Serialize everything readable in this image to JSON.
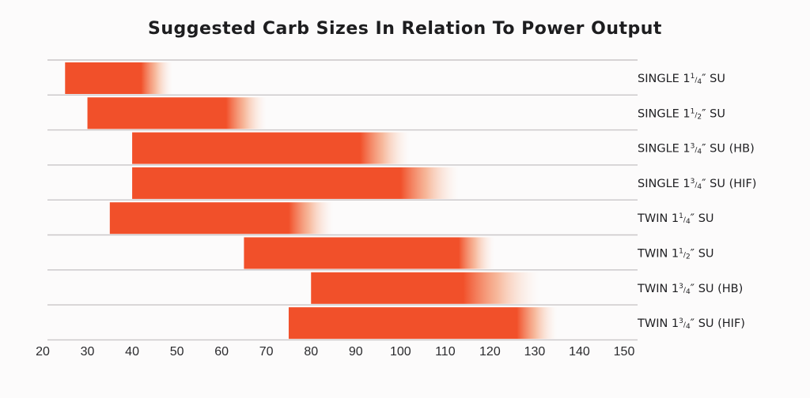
{
  "chart_data": {
    "type": "bar",
    "orientation": "horizontal-range",
    "title": "Suggested Carb Sizes In Relation To Power Output",
    "xlabel": "",
    "ylabel": "",
    "xlim": [
      20,
      150
    ],
    "x_ticks": [
      "20",
      "30",
      "40",
      "50",
      "60",
      "70",
      "80",
      "90",
      "100",
      "110",
      "120",
      "130",
      "140",
      "150"
    ],
    "bar_color": "#f1502a",
    "grid": true,
    "categories": [
      {
        "label": "SINGLE 1¼″ SU",
        "parts": [
          "SINGLE 1",
          "1",
          "4",
          "″ SU"
        ],
        "start": 25,
        "solid_end": 42,
        "fade_end": 49
      },
      {
        "label": "SINGLE 1½″ SU",
        "parts": [
          "SINGLE 1",
          "1",
          "2",
          "″ SU"
        ],
        "start": 30,
        "solid_end": 61,
        "fade_end": 70
      },
      {
        "label": "SINGLE 1¾″ SU (HB)",
        "parts": [
          "SINGLE 1",
          "3",
          "4",
          "″ SU (HB)"
        ],
        "start": 40,
        "solid_end": 91,
        "fade_end": 102
      },
      {
        "label": "SINGLE 1¾″ SU (HIF)",
        "parts": [
          "SINGLE 1",
          "3",
          "4",
          "″ SU (HIF)"
        ],
        "start": 40,
        "solid_end": 100,
        "fade_end": 113
      },
      {
        "label": "TWIN 1¼″ SU",
        "parts": [
          "TWIN 1",
          "1",
          "4",
          "″ SU"
        ],
        "start": 35,
        "solid_end": 75,
        "fade_end": 85
      },
      {
        "label": "TWIN 1½″ SU",
        "parts": [
          "TWIN 1",
          "1",
          "2",
          "″ SU"
        ],
        "start": 65,
        "solid_end": 113,
        "fade_end": 121
      },
      {
        "label": "TWIN 1¾″ SU (HB)",
        "parts": [
          "TWIN 1",
          "3",
          "4",
          "″ SU (HB)"
        ],
        "start": 80,
        "solid_end": 114,
        "fade_end": 131
      },
      {
        "label": "TWIN 1¾″ SU (HIF)",
        "parts": [
          "TWIN 1",
          "3",
          "4",
          "″ SU (HIF)"
        ],
        "start": 75,
        "solid_end": 126,
        "fade_end": 135
      }
    ]
  }
}
